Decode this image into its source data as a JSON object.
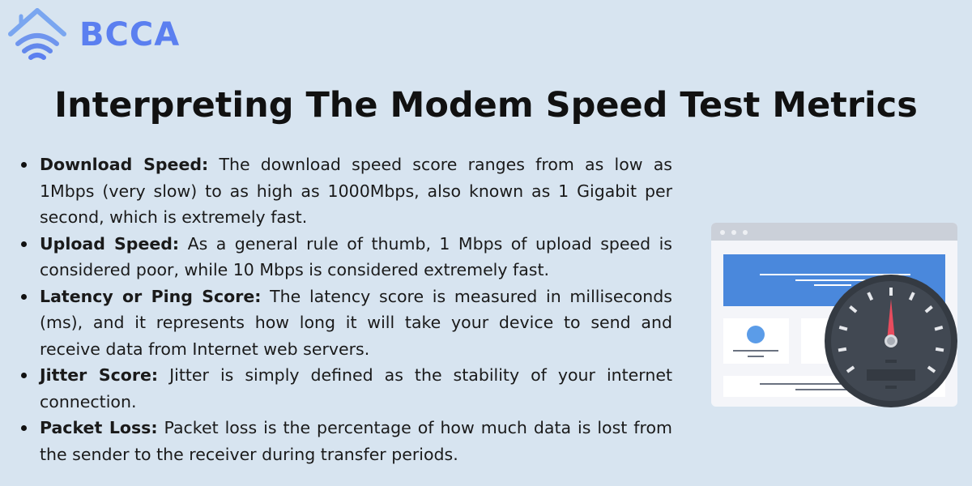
{
  "logo": {
    "text": "BCCA"
  },
  "title": "Interpreting The Modem Speed Test Metrics",
  "items": [
    {
      "term": "Download Speed:",
      "text": " The download speed score ranges from as low as 1Mbps (very slow) to as high as 1000Mbps, also known as 1 Gigabit per second, which is extremely fast."
    },
    {
      "term": "Upload Speed:",
      "text": " As a general rule of thumb, 1 Mbps of upload speed is considered poor, while 10 Mbps is considered extremely fast."
    },
    {
      "term": "Latency or Ping Score:",
      "text": " The latency score is measured in milliseconds (ms), and it represents how long it will take your device to send and receive data from Internet web servers."
    },
    {
      "term": "Jitter Score:",
      "text": " Jitter is simply defined as the stability of your internet connection."
    },
    {
      "term": "Packet Loss:",
      "text": " Packet loss is the percentage of how much data is lost from the sender to the receiver during transfer periods."
    }
  ],
  "colors": {
    "background": "#d7e4f0",
    "brand": "#5b7ff0",
    "banner": "#4a88dc",
    "gauge": "#414852",
    "needle": "#e84c5e"
  },
  "icons": [
    "house-wifi-icon",
    "speedometer-icon",
    "browser-window-icon"
  ]
}
